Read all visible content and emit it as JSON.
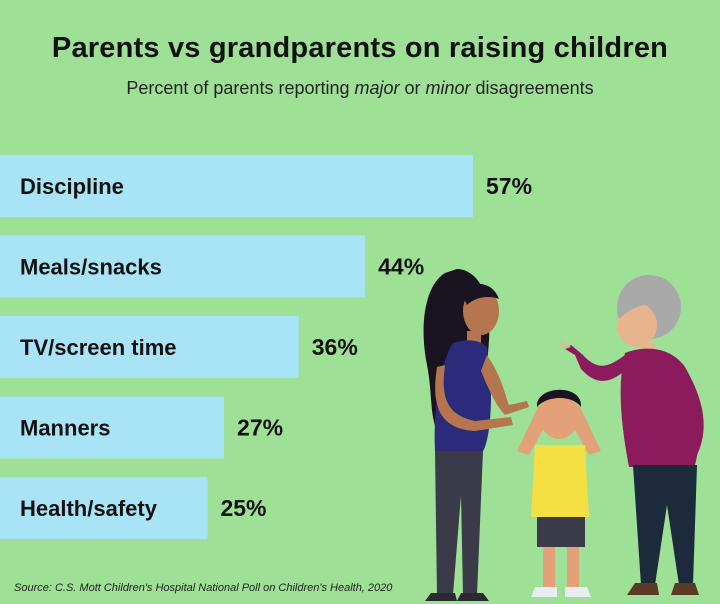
{
  "chart_data": {
    "type": "bar",
    "orientation": "horizontal",
    "title": "Parents vs grandparents on raising children",
    "subtitle": {
      "pre": "Percent of parents reporting ",
      "em1": "major",
      "mid": " or ",
      "em2": "minor",
      "post": " disagreements"
    },
    "categories": [
      "Discipline",
      "Meals/snacks",
      "TV/screen time",
      "Manners",
      "Health/safety"
    ],
    "values": [
      57,
      44,
      36,
      27,
      25
    ],
    "value_labels": [
      "57%",
      "44%",
      "36%",
      "27%",
      "25%"
    ],
    "unit": "%",
    "xlim": [
      0,
      100
    ],
    "grid": false,
    "legend": "none",
    "bar_color": "#a8e4f5",
    "background_color": "#9ee095"
  },
  "source": "Source: C.S. Mott Children's Hospital National Poll on Children's Health, 2020",
  "illustration": {
    "icon_names": [
      "mother-figure-icon",
      "child-covering-ears-icon",
      "grandmother-figure-icon"
    ]
  }
}
